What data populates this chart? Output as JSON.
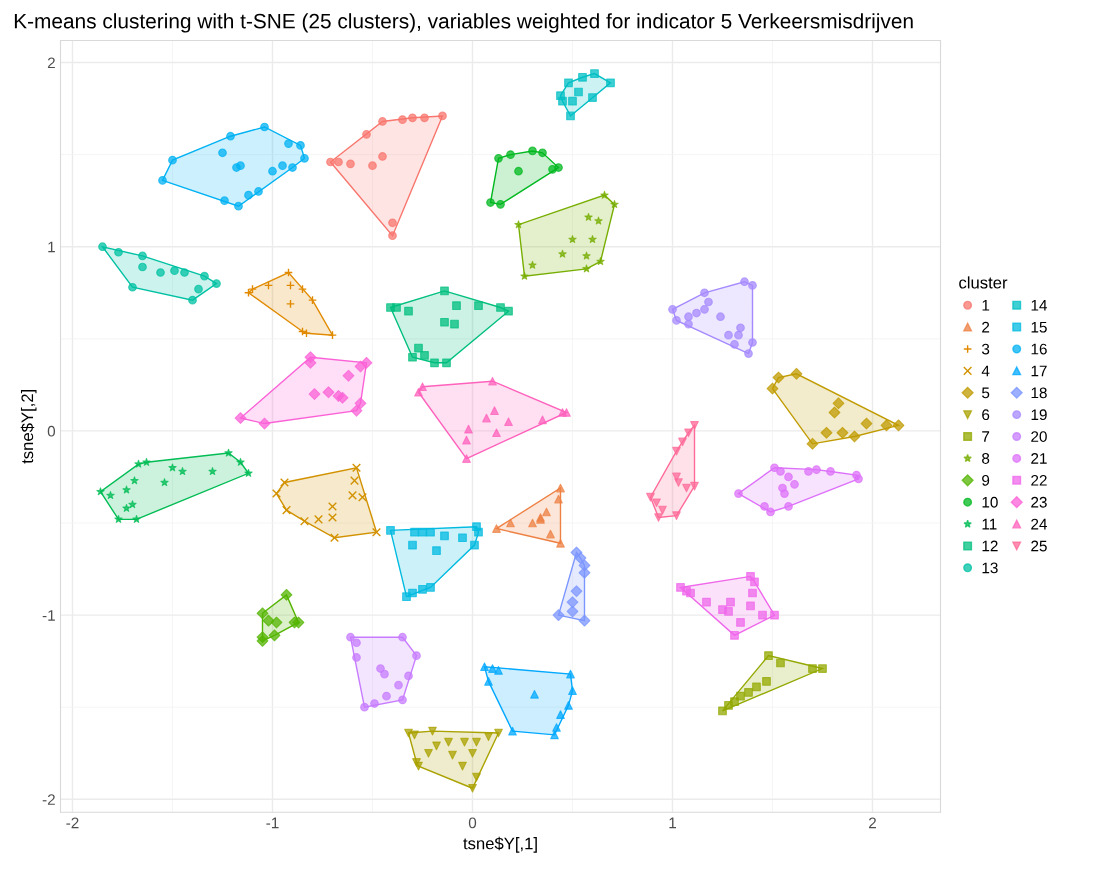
{
  "chart_data": {
    "type": "scatter",
    "title": "K-means clustering with t-SNE (25 clusters), variables weighted for indicator 5 Verkeersmisdrijven",
    "xlabel": "tsne$Y[,1]",
    "ylabel": "tsne$Y[,2]",
    "legend_title": "cluster",
    "legend": "right",
    "grid": true,
    "xlim": [
      -2.06,
      2.34
    ],
    "ylim": [
      -2.07,
      2.12
    ],
    "xticks": [
      -2,
      -1,
      0,
      1,
      2
    ],
    "yticks": [
      -2,
      -1,
      0,
      1,
      2
    ],
    "series": [
      {
        "name": "1",
        "color": "#F8766D",
        "marker": "circle",
        "x": [
          -0.71,
          -0.67,
          -0.61,
          -0.53,
          -0.45,
          -0.35,
          -0.3,
          -0.24,
          -0.15,
          -0.4,
          -0.4,
          -0.5,
          -0.45
        ],
        "values": [
          1.46,
          1.46,
          1.45,
          1.61,
          1.68,
          1.69,
          1.7,
          1.7,
          1.71,
          1.13,
          1.06,
          1.44,
          1.49
        ]
      },
      {
        "name": "2",
        "color": "#EE8043",
        "marker": "triangle",
        "x": [
          0.12,
          0.19,
          0.44,
          0.43,
          0.37,
          0.34,
          0.3,
          0.39,
          0.44,
          0.34
        ],
        "values": [
          -0.53,
          -0.5,
          -0.31,
          -0.37,
          -0.44,
          -0.47,
          -0.5,
          -0.56,
          -0.61,
          -0.48
        ]
      },
      {
        "name": "3",
        "color": "#E18A00",
        "marker": "cross",
        "x": [
          -1.12,
          -1.1,
          -1.02,
          -0.92,
          -0.91,
          -0.85,
          -0.8,
          -0.7,
          -0.85,
          -0.83,
          -0.91
        ],
        "values": [
          0.75,
          0.77,
          0.79,
          0.86,
          0.79,
          0.77,
          0.71,
          0.52,
          0.54,
          0.53,
          0.69
        ]
      },
      {
        "name": "4",
        "color": "#D29200",
        "marker": "x",
        "x": [
          -0.94,
          -0.98,
          -0.93,
          -0.84,
          -0.77,
          -0.69,
          -0.58,
          -0.59,
          -0.6,
          -0.55,
          -0.7,
          -0.48,
          -0.7
        ],
        "values": [
          -0.28,
          -0.34,
          -0.43,
          -0.49,
          -0.48,
          -0.58,
          -0.2,
          -0.27,
          -0.35,
          -0.36,
          -0.47,
          -0.55,
          -0.41
        ]
      },
      {
        "name": "5",
        "color": "#C09B00",
        "marker": "diamond",
        "x": [
          1.5,
          1.53,
          1.62,
          1.7,
          1.77,
          1.85,
          1.91,
          1.97,
          2.07,
          2.13,
          1.83,
          1.81
        ],
        "values": [
          0.23,
          0.29,
          0.31,
          -0.07,
          -0.01,
          -0.01,
          -0.03,
          0.04,
          0.03,
          0.03,
          0.15,
          0.1
        ]
      },
      {
        "name": "6",
        "color": "#AAA200",
        "marker": "triangle_down",
        "x": [
          -0.32,
          -0.29,
          -0.2,
          0.13,
          0.08,
          -0.28,
          -0.27,
          0.02,
          0.0,
          -0.22,
          -0.18,
          -0.12,
          -0.04,
          0.02,
          0.0,
          -0.05,
          -0.1
        ],
        "values": [
          -1.64,
          -1.65,
          -1.63,
          -1.64,
          -1.66,
          -1.8,
          -1.82,
          -1.88,
          -1.94,
          -1.75,
          -1.71,
          -1.69,
          -1.69,
          -1.69,
          -1.75,
          -1.82,
          -1.76
        ]
      },
      {
        "name": "7",
        "color": "#93A800",
        "marker": "square",
        "x": [
          1.48,
          1.54,
          1.7,
          1.75,
          1.25,
          1.28,
          1.31,
          1.34,
          1.38,
          1.42,
          1.47
        ],
        "values": [
          -1.22,
          -1.26,
          -1.29,
          -1.29,
          -1.52,
          -1.49,
          -1.47,
          -1.44,
          -1.42,
          -1.39,
          -1.36
        ]
      },
      {
        "name": "8",
        "color": "#77AE00",
        "marker": "star",
        "x": [
          0.66,
          0.71,
          0.23,
          0.26,
          0.3,
          0.57,
          0.64,
          0.57,
          0.45,
          0.6,
          0.58,
          0.63,
          0.5
        ],
        "values": [
          1.28,
          1.23,
          1.12,
          0.84,
          0.9,
          0.88,
          0.92,
          0.95,
          0.96,
          1.04,
          1.16,
          1.14,
          1.04
        ]
      },
      {
        "name": "9",
        "color": "#53B400",
        "marker": "diamond",
        "x": [
          -0.93,
          -1.05,
          -1.05,
          -1.05,
          -0.89,
          -0.87,
          -0.99,
          -1.02,
          -0.98
        ],
        "values": [
          -0.89,
          -0.99,
          -1.14,
          -1.12,
          -1.04,
          -1.04,
          -1.11,
          -1.03,
          -1.04
        ]
      },
      {
        "name": "10",
        "color": "#00B81F",
        "marker": "circle",
        "x": [
          0.13,
          0.19,
          0.3,
          0.35,
          0.43,
          0.4,
          0.09,
          0.14,
          0.23
        ],
        "values": [
          1.48,
          1.5,
          1.52,
          1.51,
          1.43,
          1.42,
          1.24,
          1.23,
          1.41
        ]
      },
      {
        "name": "11",
        "color": "#00BC54",
        "marker": "star",
        "x": [
          -1.86,
          -1.77,
          -1.68,
          -1.63,
          -1.67,
          -1.22,
          -1.12,
          -1.16,
          -1.3,
          -1.45,
          -1.5,
          -1.69,
          -1.73,
          -1.81,
          -1.73,
          -1.7,
          -1.54
        ],
        "values": [
          -0.33,
          -0.48,
          -0.48,
          -0.17,
          -0.18,
          -0.12,
          -0.23,
          -0.17,
          -0.22,
          -0.22,
          -0.2,
          -0.27,
          -0.32,
          -0.35,
          -0.42,
          -0.4,
          -0.28
        ]
      },
      {
        "name": "12",
        "color": "#00BF7D",
        "marker": "square",
        "x": [
          -0.41,
          -0.38,
          -0.32,
          -0.14,
          -0.08,
          0.03,
          0.14,
          0.18,
          -0.13,
          -0.19,
          -0.3,
          -0.27,
          -0.24,
          -0.09,
          -0.14
        ],
        "values": [
          0.67,
          0.67,
          0.65,
          0.76,
          0.68,
          0.68,
          0.67,
          0.65,
          0.37,
          0.37,
          0.4,
          0.45,
          0.41,
          0.58,
          0.59
        ]
      },
      {
        "name": "13",
        "color": "#00C1A3",
        "marker": "circle",
        "x": [
          -1.85,
          -1.77,
          -1.65,
          -1.65,
          -1.7,
          -1.4,
          -1.34,
          -1.28,
          -1.37,
          -1.44,
          -1.49,
          -1.56
        ],
        "values": [
          1.0,
          0.97,
          0.95,
          0.89,
          0.78,
          0.71,
          0.84,
          0.8,
          0.77,
          0.86,
          0.87,
          0.86
        ]
      },
      {
        "name": "14",
        "color": "#00BFC4",
        "marker": "square",
        "x": [
          0.48,
          0.55,
          0.61,
          0.69,
          0.6,
          0.49,
          0.44,
          0.45,
          0.5,
          0.53
        ],
        "values": [
          1.89,
          1.92,
          1.94,
          1.89,
          1.81,
          1.71,
          1.82,
          1.79,
          1.79,
          1.84
        ]
      },
      {
        "name": "15",
        "color": "#00BAE0",
        "marker": "square",
        "x": [
          -0.41,
          -0.29,
          -0.25,
          -0.21,
          -0.14,
          -0.05,
          0.02,
          0.03,
          0.01,
          -0.3,
          -0.21,
          -0.25,
          -0.3,
          -0.33,
          -0.18
        ],
        "values": [
          -0.54,
          -0.55,
          -0.55,
          -0.55,
          -0.57,
          -0.58,
          -0.52,
          -0.55,
          -0.62,
          -0.62,
          -0.85,
          -0.86,
          -0.88,
          -0.9,
          -0.65
        ]
      },
      {
        "name": "16",
        "color": "#00B2F3",
        "marker": "circle",
        "x": [
          -1.55,
          -1.5,
          -1.21,
          -1.04,
          -0.92,
          -0.86,
          -0.84,
          -0.9,
          -1.24,
          -1.17,
          -1.12,
          -1.07,
          -1.18,
          -1.25,
          -1.0,
          -0.95,
          -1.16
        ],
        "values": [
          1.36,
          1.47,
          1.6,
          1.65,
          1.56,
          1.55,
          1.48,
          1.43,
          1.25,
          1.22,
          1.28,
          1.3,
          1.43,
          1.51,
          1.41,
          1.44,
          1.44
        ]
      },
      {
        "name": "17",
        "color": "#00A8FF",
        "marker": "triangle",
        "x": [
          0.06,
          0.1,
          0.13,
          0.08,
          0.49,
          0.5,
          0.48,
          0.44,
          0.42,
          0.41,
          0.2,
          0.31
        ],
        "values": [
          -1.28,
          -1.29,
          -1.3,
          -1.36,
          -1.32,
          -1.41,
          -1.49,
          -1.54,
          -1.61,
          -1.65,
          -1.63,
          -1.43
        ]
      },
      {
        "name": "18",
        "color": "#7B96FF",
        "marker": "diamond",
        "x": [
          0.52,
          0.54,
          0.56,
          0.56,
          0.5,
          0.5,
          0.43,
          0.56,
          0.52
        ],
        "values": [
          -0.66,
          -0.69,
          -0.73,
          -0.77,
          -0.93,
          -0.98,
          -1.0,
          -1.03,
          -0.87
        ]
      },
      {
        "name": "19",
        "color": "#A58AFF",
        "marker": "circle",
        "x": [
          1.0,
          1.02,
          1.08,
          1.08,
          1.12,
          1.16,
          1.18,
          1.16,
          1.36,
          1.4,
          1.4,
          1.38,
          1.31,
          1.28,
          1.33,
          1.34,
          1.24
        ],
        "values": [
          0.66,
          0.6,
          0.58,
          0.62,
          0.64,
          0.75,
          0.7,
          0.66,
          0.81,
          0.79,
          0.48,
          0.42,
          0.47,
          0.52,
          0.52,
          0.56,
          0.62
        ]
      },
      {
        "name": "20",
        "color": "#C77CFF",
        "marker": "circle",
        "x": [
          -0.61,
          -0.58,
          -0.58,
          -0.54,
          -0.35,
          -0.28,
          -0.32,
          -0.35,
          -0.37,
          -0.43,
          -0.49,
          -0.44,
          -0.46
        ],
        "values": [
          -1.12,
          -1.15,
          -1.23,
          -1.5,
          -1.12,
          -1.22,
          -1.33,
          -1.46,
          -1.38,
          -1.44,
          -1.48,
          -1.32,
          -1.29
        ]
      },
      {
        "name": "21",
        "color": "#DD71FA",
        "marker": "circle",
        "x": [
          1.33,
          1.51,
          1.54,
          1.68,
          1.72,
          1.79,
          1.92,
          1.93,
          1.49,
          1.46,
          1.58,
          1.58,
          1.55,
          1.56,
          1.61
        ],
        "values": [
          -0.34,
          -0.2,
          -0.22,
          -0.22,
          -0.21,
          -0.22,
          -0.24,
          -0.26,
          -0.44,
          -0.41,
          -0.41,
          -0.25,
          -0.31,
          -0.34,
          -0.29
        ]
      },
      {
        "name": "22",
        "color": "#EF67EB",
        "marker": "square",
        "x": [
          1.04,
          1.07,
          1.09,
          1.39,
          1.41,
          1.4,
          1.51,
          1.45,
          1.39,
          1.34,
          1.31,
          1.17,
          1.25,
          1.28,
          1.29
        ],
        "values": [
          -0.85,
          -0.87,
          -0.88,
          -0.79,
          -0.82,
          -0.88,
          -1.0,
          -1.0,
          -0.95,
          -1.04,
          -1.11,
          -0.93,
          -0.97,
          -0.98,
          -0.93
        ]
      },
      {
        "name": "23",
        "color": "#FB61D7",
        "marker": "diamond",
        "x": [
          -0.81,
          -0.81,
          -0.53,
          -0.56,
          -0.62,
          -0.56,
          -0.58,
          -1.16,
          -1.04,
          -0.72,
          -0.67,
          -0.65,
          -0.79
        ],
        "values": [
          0.4,
          0.37,
          0.37,
          0.35,
          0.3,
          0.15,
          0.11,
          0.07,
          0.04,
          0.21,
          0.19,
          0.18,
          0.2
        ]
      },
      {
        "name": "24",
        "color": "#FF62BC",
        "marker": "triangle",
        "x": [
          -0.27,
          -0.25,
          0.1,
          0.47,
          0.45,
          0.35,
          0.18,
          0.12,
          -0.02,
          -0.03,
          -0.03,
          0.11,
          0.07
        ],
        "values": [
          0.21,
          0.24,
          0.27,
          0.1,
          0.1,
          0.06,
          0.05,
          -0.01,
          0.01,
          -0.05,
          -0.15,
          0.11,
          0.07
        ]
      },
      {
        "name": "25",
        "color": "#FF6A98",
        "marker": "triangle_down",
        "x": [
          1.11,
          1.08,
          1.05,
          1.02,
          0.89,
          0.92,
          0.95,
          0.93,
          1.02,
          1.11,
          1.07,
          1.03,
          1.02
        ],
        "values": [
          0.03,
          -0.01,
          -0.06,
          -0.11,
          -0.36,
          -0.39,
          -0.43,
          -0.47,
          -0.46,
          -0.3,
          -0.31,
          -0.28,
          -0.25
        ]
      }
    ]
  }
}
